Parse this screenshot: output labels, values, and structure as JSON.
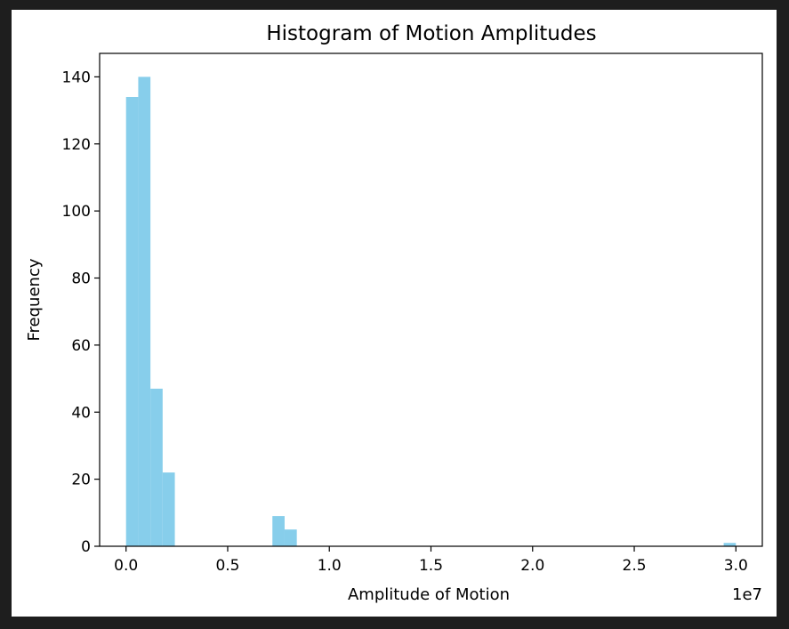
{
  "chart_data": {
    "type": "bar",
    "title": "Histogram of Motion Amplitudes",
    "xlabel": "Amplitude of Motion",
    "ylabel": "Frequency",
    "x_offset_label": "1e7",
    "bar_color": "#87ceeb",
    "xlim": [
      -0.13,
      3.13
    ],
    "ylim": [
      0,
      147
    ],
    "xticks": [
      0.0,
      0.5,
      1.0,
      1.5,
      2.0,
      2.5,
      3.0
    ],
    "xtick_labels": [
      "0.0",
      "0.5",
      "1.0",
      "1.5",
      "2.0",
      "2.5",
      "3.0"
    ],
    "yticks": [
      0,
      20,
      40,
      60,
      80,
      100,
      120,
      140
    ],
    "ytick_labels": [
      "0",
      "20",
      "40",
      "60",
      "80",
      "100",
      "120",
      "140"
    ],
    "bins": [
      {
        "start": 0.0,
        "end": 0.06,
        "count": 134
      },
      {
        "start": 0.06,
        "end": 0.12,
        "count": 140
      },
      {
        "start": 0.12,
        "end": 0.18,
        "count": 47
      },
      {
        "start": 0.18,
        "end": 0.24,
        "count": 22
      },
      {
        "start": 0.72,
        "end": 0.78,
        "count": 9
      },
      {
        "start": 0.78,
        "end": 0.84,
        "count": 5
      },
      {
        "start": 2.94,
        "end": 3.0,
        "count": 1
      }
    ],
    "grid": false,
    "legend": false
  }
}
